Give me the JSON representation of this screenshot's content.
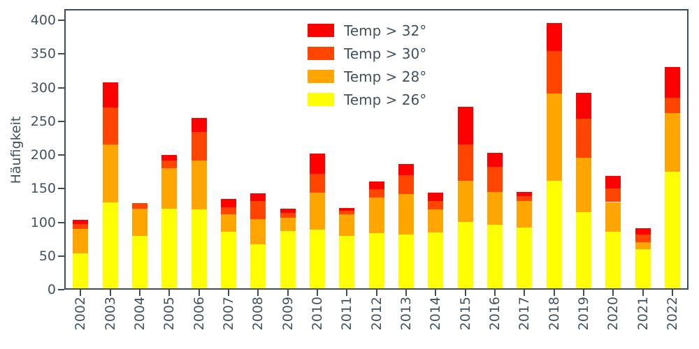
{
  "figure": {
    "background": "#ffffff"
  },
  "colors": {
    "axis": "#3f4d59",
    "text": "#44525e"
  },
  "chart_data": {
    "type": "bar",
    "stacked": true,
    "title": "",
    "xlabel": "",
    "ylabel": "Häufigkeit",
    "ylim": [
      0,
      400
    ],
    "yticks": [
      0,
      50,
      100,
      150,
      200,
      250,
      300,
      350,
      400
    ],
    "grid": false,
    "legend_position": "upper center inside",
    "legend_order_top_to_bottom": [
      "Temp > 32°",
      "Temp > 30°",
      "Temp > 28°",
      "Temp > 26°"
    ],
    "categories": [
      "2002",
      "2003",
      "2004",
      "2005",
      "2006",
      "2007",
      "2008",
      "2009",
      "2010",
      "2011",
      "2012",
      "2013",
      "2014",
      "2015",
      "2016",
      "2017",
      "2018",
      "2019",
      "2020",
      "2021",
      "2022"
    ],
    "series": [
      {
        "name": "Temp > 26°",
        "color": "#ffff00",
        "values": [
          52,
          127,
          78,
          118,
          117,
          84,
          65,
          85,
          87,
          78,
          82,
          80,
          83,
          98,
          94,
          90,
          160,
          113,
          84,
          58,
          173
        ]
      },
      {
        "name": "Temp > 28°",
        "color": "#ffa500",
        "values": [
          36,
          86,
          40,
          60,
          73,
          26,
          38,
          20,
          55,
          32,
          53,
          60,
          34,
          62,
          49,
          40,
          129,
          81,
          44,
          10,
          87
        ]
      },
      {
        "name": "Temp > 30°",
        "color": "#ff4500",
        "values": [
          7,
          55,
          8,
          12,
          42,
          10,
          27,
          7,
          28,
          5,
          12,
          28,
          13,
          53,
          37,
          7,
          63,
          58,
          20,
          12,
          23
        ]
      },
      {
        "name": "Temp > 32°",
        "color": "#ff0000",
        "values": [
          7,
          38,
          0,
          8,
          21,
          13,
          11,
          6,
          30,
          4,
          12,
          16,
          12,
          56,
          21,
          6,
          42,
          38,
          19,
          9,
          45
        ]
      }
    ],
    "totals": [
      102,
      306,
      126,
      198,
      253,
      133,
      141,
      118,
      200,
      119,
      159,
      184,
      142,
      269,
      201,
      143,
      394,
      290,
      167,
      89,
      328
    ]
  }
}
